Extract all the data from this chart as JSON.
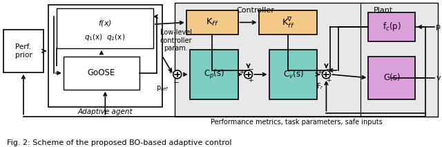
{
  "white": "#ffffff",
  "black": "#000000",
  "orange_fill": "#f5c98a",
  "teal_fill": "#7ecec4",
  "pink_fill": "#d9a0d9",
  "light_gray": "#e8e8e8",
  "caption": "Fig. 2: Scheme of the proposed BO-based adaptive control",
  "perf_label": "Perf.\nprior",
  "adaptive_agent_label": "Adaptive agent",
  "controller_label": "Controller",
  "plant_label": "Plant",
  "goose_label": "GoOSE",
  "fx_label": "f(x)",
  "q1q2_label": "q$_1$(x)  q$_2$(x)",
  "kff_label": "K$_{ff}$",
  "cp_label": "C$_p$(s)",
  "cv_label": "C$_v$(s)",
  "fc_label": "f$_c$(p)",
  "gs_label": "G(s)",
  "lowlevel_label": "Low-level\ncontroller\nparam.",
  "pref_label": "p$_{ref}$",
  "fr_label": "F$_r$",
  "p_label": "p",
  "v_label": "v",
  "perf_metrics_label": "Performance metrics, task parameters, safe inputs"
}
